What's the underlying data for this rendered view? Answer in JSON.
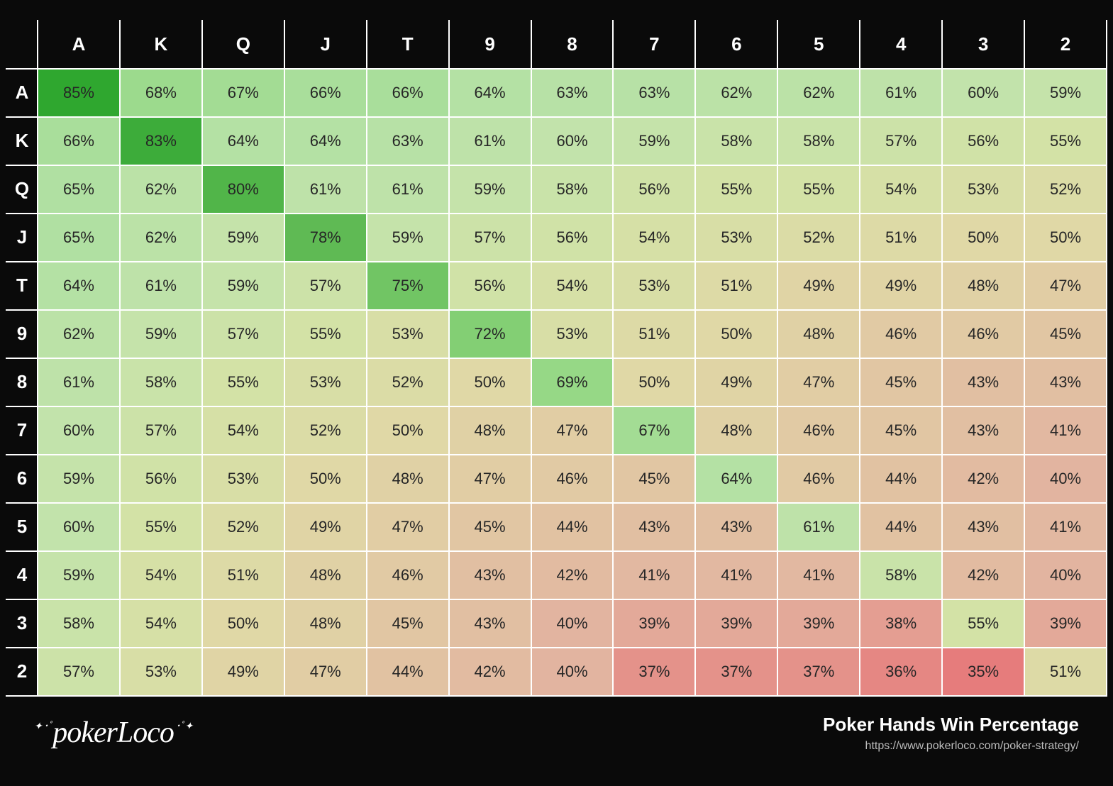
{
  "chart": {
    "type": "heatmap-table",
    "ranks": [
      "A",
      "K",
      "Q",
      "J",
      "T",
      "9",
      "8",
      "7",
      "6",
      "5",
      "4",
      "3",
      "2"
    ],
    "values": [
      [
        85,
        68,
        67,
        66,
        66,
        64,
        63,
        63,
        62,
        62,
        61,
        60,
        59
      ],
      [
        66,
        83,
        64,
        64,
        63,
        61,
        60,
        59,
        58,
        58,
        57,
        56,
        55
      ],
      [
        65,
        62,
        80,
        61,
        61,
        59,
        58,
        56,
        55,
        55,
        54,
        53,
        52
      ],
      [
        65,
        62,
        59,
        78,
        59,
        57,
        56,
        54,
        53,
        52,
        51,
        50,
        50
      ],
      [
        64,
        61,
        59,
        57,
        75,
        56,
        54,
        53,
        51,
        49,
        49,
        48,
        47
      ],
      [
        62,
        59,
        57,
        55,
        53,
        72,
        53,
        51,
        50,
        48,
        46,
        46,
        45
      ],
      [
        61,
        58,
        55,
        53,
        52,
        50,
        69,
        50,
        49,
        47,
        45,
        43,
        43
      ],
      [
        60,
        57,
        54,
        52,
        50,
        48,
        47,
        67,
        48,
        46,
        45,
        43,
        41
      ],
      [
        59,
        56,
        53,
        50,
        48,
        47,
        46,
        45,
        64,
        46,
        44,
        42,
        40
      ],
      [
        60,
        55,
        52,
        49,
        47,
        45,
        44,
        43,
        43,
        61,
        44,
        43,
        41
      ],
      [
        59,
        54,
        51,
        48,
        46,
        43,
        42,
        41,
        41,
        41,
        58,
        42,
        40
      ],
      [
        58,
        54,
        50,
        48,
        45,
        43,
        40,
        39,
        39,
        39,
        38,
        55,
        39
      ],
      [
        57,
        53,
        49,
        47,
        44,
        42,
        40,
        37,
        37,
        37,
        36,
        35,
        51
      ]
    ],
    "cell_suffix": "%",
    "header_bg": "#0a0a0a",
    "header_fg": "#ffffff",
    "border_color": "#ffffff",
    "text_color": "#262626",
    "font_size_cell": 22,
    "font_size_header": 26,
    "color_scale": {
      "breaks": [
        35,
        40,
        50,
        55,
        60,
        65,
        70,
        78,
        85
      ],
      "colors": [
        "#e67c7c",
        "#e2b4a0",
        "#e0d8a6",
        "#d3e2a6",
        "#c2e3ab",
        "#b0e0a2",
        "#8fd67f",
        "#5fba54",
        "#2fa72f"
      ]
    }
  },
  "footer": {
    "logo_text": "pokerLoco",
    "title": "Poker Hands Win Percentage",
    "url": "https://www.pokerloco.com/poker-strategy/"
  }
}
